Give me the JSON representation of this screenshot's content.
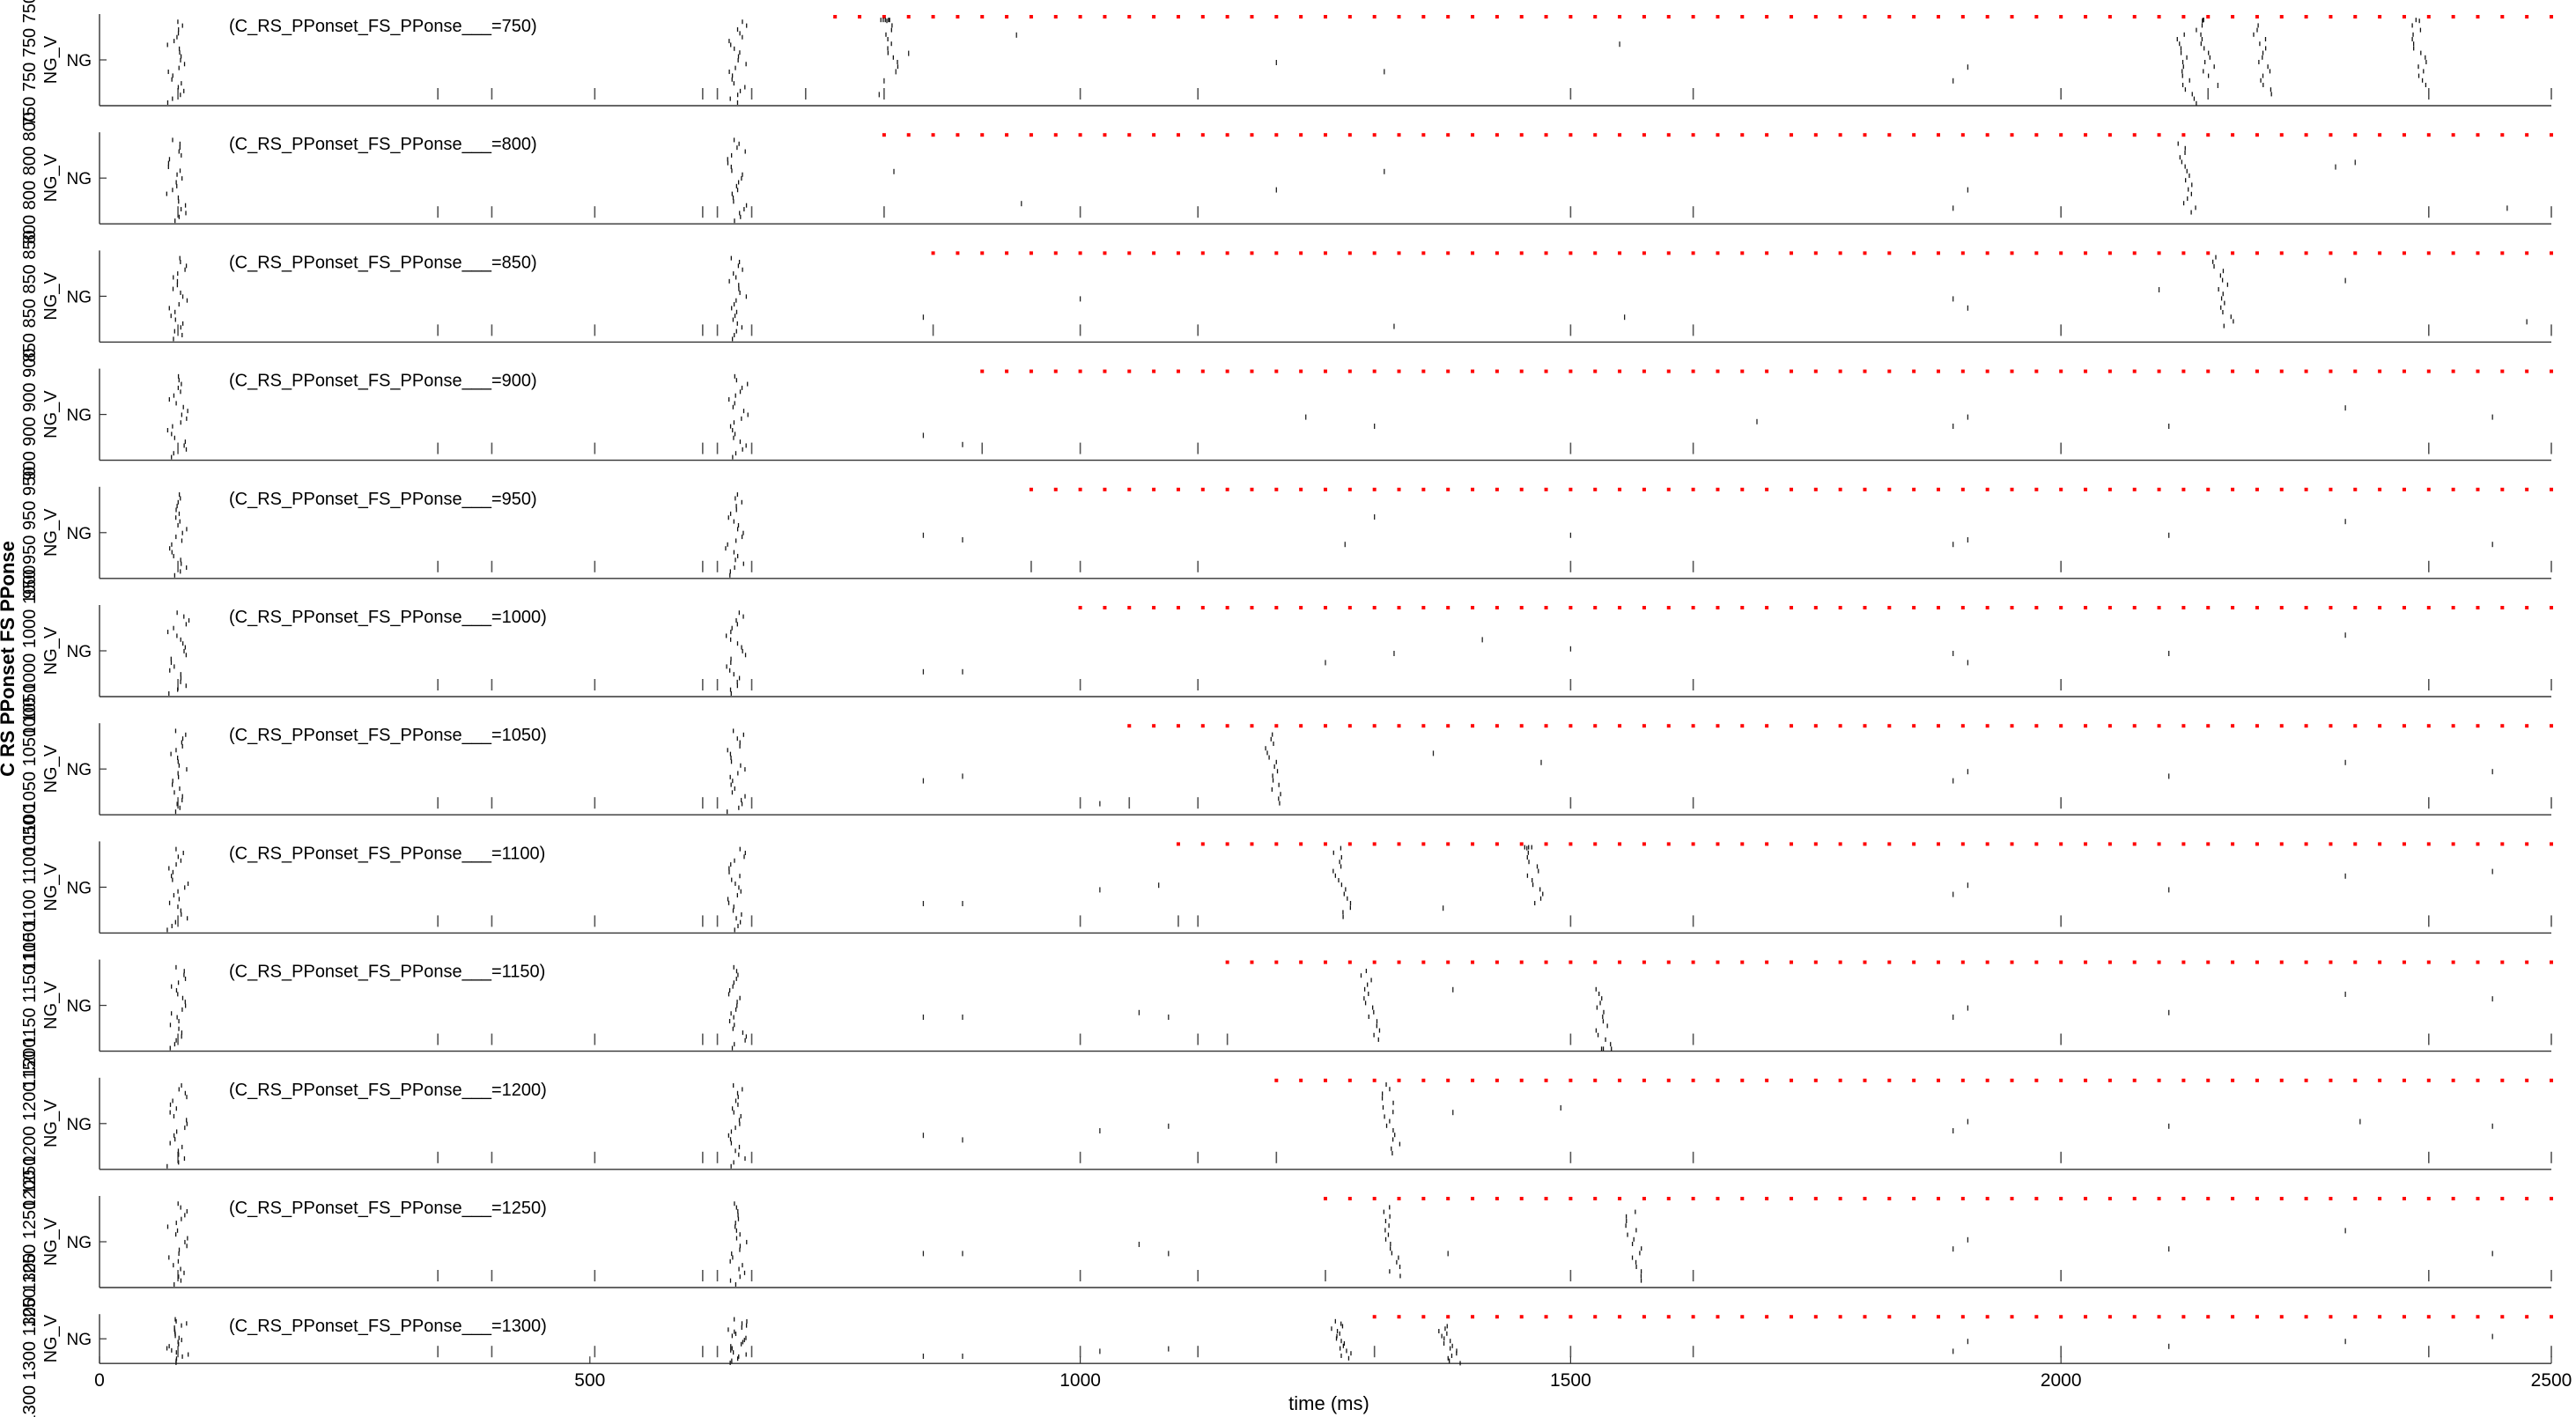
{
  "figure": {
    "side_label": "C RS PPonset FS PPonse",
    "xlabel": "time (ms)"
  },
  "chart_data": {
    "type": "scatter",
    "xlabel": "time (ms)",
    "ylabel": "NG_V",
    "xlim": [
      0,
      2500
    ],
    "xticks": [
      0,
      500,
      1000,
      1500,
      2000,
      2500
    ],
    "x_tick_labels": [
      "0",
      "500",
      "1000",
      "1500",
      "2000",
      "2500"
    ],
    "panel_ylabel": "NG_V",
    "panels": [
      {
        "title": "(C_RS_PPonset_FS_PPonse___=750)",
        "onset": 750,
        "left_strip": "750 750 750 750",
        "vlines": [
          80,
          345,
          400,
          505,
          615,
          630,
          665,
          720,
          800,
          1000,
          1120,
          1500,
          1625,
          2000,
          2150,
          2375,
          2500
        ],
        "extra_spikes": [
          [
            795,
            0.85
          ],
          [
            800,
            0.7
          ],
          [
            812,
            0.6
          ],
          [
            825,
            0.4
          ],
          [
            935,
            0.2
          ],
          [
            1200,
            0.5
          ],
          [
            1310,
            0.6
          ],
          [
            1550,
            0.3
          ],
          [
            1890,
            0.7
          ],
          [
            1905,
            0.55
          ],
          [
            2160,
            0.75
          ]
        ],
        "bursts": [
          [
            800,
            0.2
          ],
          [
            2120,
            0.6
          ],
          [
            2140,
            0.3
          ],
          [
            2200,
            0.5
          ],
          [
            2360,
            0.4
          ]
        ]
      },
      {
        "title": "(C_RS_PPonset_FS_PPonse___=800)",
        "onset": 800,
        "left_strip": "800 800 800 800",
        "vlines": [
          80,
          345,
          400,
          505,
          615,
          630,
          665,
          800,
          1000,
          1120,
          1500,
          1625,
          2000,
          2375,
          2500
        ],
        "extra_spikes": [
          [
            810,
            0.4
          ],
          [
            940,
            0.75
          ],
          [
            1200,
            0.6
          ],
          [
            1310,
            0.4
          ],
          [
            1890,
            0.8
          ],
          [
            1905,
            0.6
          ],
          [
            2280,
            0.35
          ],
          [
            2300,
            0.3
          ],
          [
            2455,
            0.8
          ]
        ],
        "bursts": [
          [
            2120,
            0.5
          ]
        ]
      },
      {
        "title": "(C_RS_PPonset_FS_PPonse___=850)",
        "onset": 850,
        "left_strip": "850 850 850 850",
        "vlines": [
          80,
          345,
          400,
          505,
          615,
          630,
          665,
          850,
          1000,
          1120,
          1500,
          1625,
          2000,
          2375,
          2500
        ],
        "extra_spikes": [
          [
            840,
            0.7
          ],
          [
            1000,
            0.5
          ],
          [
            1320,
            0.8
          ],
          [
            1555,
            0.7
          ],
          [
            1890,
            0.5
          ],
          [
            1905,
            0.6
          ],
          [
            2100,
            0.4
          ],
          [
            2290,
            0.3
          ],
          [
            2475,
            0.75
          ]
        ],
        "bursts": [
          [
            2160,
            0.45
          ]
        ]
      },
      {
        "title": "(C_RS_PPonset_FS_PPonse___=900)",
        "onset": 900,
        "left_strip": "900 900 900 900",
        "vlines": [
          80,
          345,
          400,
          505,
          615,
          630,
          665,
          900,
          1000,
          1120,
          1500,
          1625,
          2000,
          2375,
          2500
        ],
        "extra_spikes": [
          [
            840,
            0.7
          ],
          [
            880,
            0.8
          ],
          [
            1230,
            0.5
          ],
          [
            1300,
            0.6
          ],
          [
            1690,
            0.55
          ],
          [
            1890,
            0.6
          ],
          [
            1905,
            0.5
          ],
          [
            2110,
            0.6
          ],
          [
            2290,
            0.4
          ],
          [
            2440,
            0.5
          ]
        ],
        "bursts": []
      },
      {
        "title": "(C_RS_PPonset_FS_PPonse___=950)",
        "onset": 950,
        "left_strip": "950 950 950 950",
        "vlines": [
          80,
          345,
          400,
          505,
          615,
          630,
          665,
          950,
          1000,
          1120,
          1500,
          1625,
          2000,
          2375,
          2500
        ],
        "extra_spikes": [
          [
            840,
            0.5
          ],
          [
            880,
            0.55
          ],
          [
            1270,
            0.6
          ],
          [
            1300,
            0.3
          ],
          [
            1500,
            0.5
          ],
          [
            1890,
            0.6
          ],
          [
            1905,
            0.55
          ],
          [
            2110,
            0.5
          ],
          [
            2290,
            0.35
          ],
          [
            2440,
            0.6
          ]
        ],
        "bursts": []
      },
      {
        "title": "(C_RS_PPonset_FS_PPonse___=1000)",
        "onset": 1000,
        "left_strip": "1000 1000 1000 1000",
        "vlines": [
          80,
          345,
          400,
          505,
          615,
          630,
          665,
          1000,
          1120,
          1500,
          1625,
          2000,
          2375,
          2500
        ],
        "extra_spikes": [
          [
            840,
            0.7
          ],
          [
            880,
            0.7
          ],
          [
            1250,
            0.6
          ],
          [
            1320,
            0.5
          ],
          [
            1410,
            0.35
          ],
          [
            1500,
            0.45
          ],
          [
            1890,
            0.5
          ],
          [
            1905,
            0.6
          ],
          [
            2110,
            0.5
          ],
          [
            2290,
            0.3
          ]
        ],
        "bursts": []
      },
      {
        "title": "(C_RS_PPonset_FS_PPonse___=1050)",
        "onset": 1050,
        "left_strip": "1050 1050 1050 1050",
        "vlines": [
          80,
          345,
          400,
          505,
          615,
          630,
          665,
          1000,
          1050,
          1120,
          1500,
          1625,
          2000,
          2375,
          2500
        ],
        "extra_spikes": [
          [
            840,
            0.6
          ],
          [
            880,
            0.55
          ],
          [
            1020,
            0.85
          ],
          [
            1360,
            0.3
          ],
          [
            1470,
            0.4
          ],
          [
            1890,
            0.6
          ],
          [
            1905,
            0.5
          ],
          [
            2110,
            0.55
          ],
          [
            2290,
            0.4
          ],
          [
            2440,
            0.5
          ]
        ],
        "bursts": [
          [
            1190,
            0.5
          ]
        ]
      },
      {
        "title": "(C_RS_PPonset_FS_PPonse___=1100)",
        "onset": 1100,
        "left_strip": "1100 1100 1100 1100",
        "vlines": [
          80,
          345,
          400,
          505,
          615,
          630,
          665,
          1000,
          1100,
          1120,
          1500,
          1625,
          2000,
          2375,
          2500
        ],
        "extra_spikes": [
          [
            840,
            0.65
          ],
          [
            880,
            0.65
          ],
          [
            1020,
            0.5
          ],
          [
            1080,
            0.45
          ],
          [
            1370,
            0.7
          ],
          [
            1890,
            0.55
          ],
          [
            1905,
            0.45
          ],
          [
            2110,
            0.5
          ],
          [
            2290,
            0.35
          ],
          [
            2440,
            0.3
          ]
        ],
        "bursts": [
          [
            1260,
            0.45
          ],
          [
            1455,
            0.3
          ]
        ]
      },
      {
        "title": "(C_RS_PPonset_FS_PPonse___=1150)",
        "onset": 1150,
        "left_strip": "1150 1150 1150 1150",
        "vlines": [
          80,
          345,
          400,
          505,
          615,
          630,
          665,
          1000,
          1120,
          1150,
          1500,
          1625,
          2000,
          2375,
          2500
        ],
        "extra_spikes": [
          [
            840,
            0.6
          ],
          [
            880,
            0.6
          ],
          [
            1060,
            0.55
          ],
          [
            1090,
            0.6
          ],
          [
            1380,
            0.3
          ],
          [
            1890,
            0.6
          ],
          [
            1905,
            0.5
          ],
          [
            2110,
            0.55
          ],
          [
            2290,
            0.35
          ],
          [
            2440,
            0.4
          ]
        ],
        "bursts": [
          [
            1290,
            0.5
          ],
          [
            1525,
            0.7
          ]
        ]
      },
      {
        "title": "(C_RS_PPonset_FS_PPonse___=1200)",
        "onset": 1200,
        "left_strip": "1200 1200 1200 1200",
        "vlines": [
          80,
          345,
          400,
          505,
          615,
          630,
          665,
          1000,
          1120,
          1200,
          1500,
          1625,
          2000,
          2375,
          2500
        ],
        "extra_spikes": [
          [
            840,
            0.6
          ],
          [
            880,
            0.65
          ],
          [
            1020,
            0.55
          ],
          [
            1090,
            0.5
          ],
          [
            1380,
            0.35
          ],
          [
            1490,
            0.3
          ],
          [
            1890,
            0.55
          ],
          [
            1905,
            0.45
          ],
          [
            2110,
            0.5
          ],
          [
            2305,
            0.45
          ],
          [
            2440,
            0.5
          ]
        ],
        "bursts": [
          [
            1310,
            0.45
          ]
        ]
      },
      {
        "title": "(C_RS_PPonset_FS_PPonse___=1250)",
        "onset": 1250,
        "left_strip": "1250 1250 1250 1250",
        "vlines": [
          80,
          345,
          400,
          505,
          615,
          630,
          665,
          1000,
          1120,
          1250,
          1500,
          1625,
          2000,
          2375,
          2500
        ],
        "extra_spikes": [
          [
            840,
            0.6
          ],
          [
            880,
            0.6
          ],
          [
            1060,
            0.5
          ],
          [
            1090,
            0.6
          ],
          [
            1375,
            0.6
          ],
          [
            1890,
            0.55
          ],
          [
            1905,
            0.45
          ],
          [
            2110,
            0.55
          ],
          [
            2290,
            0.35
          ],
          [
            2440,
            0.6
          ]
        ],
        "bursts": [
          [
            1310,
            0.5
          ],
          [
            1560,
            0.55
          ]
        ]
      },
      {
        "title": "(C_RS_PPonset_FS_PPonse___=1300)",
        "onset": 1300,
        "left_strip": "1300 1300 1300 1300",
        "vlines": [
          80,
          345,
          400,
          505,
          615,
          630,
          665,
          1000,
          1120,
          1300,
          1500,
          1625,
          2000,
          2375,
          2500
        ],
        "extra_spikes": [
          [
            840,
            0.8
          ],
          [
            880,
            0.8
          ],
          [
            1020,
            0.7
          ],
          [
            1090,
            0.65
          ],
          [
            1890,
            0.7
          ],
          [
            1905,
            0.5
          ],
          [
            2110,
            0.6
          ],
          [
            2290,
            0.5
          ],
          [
            2440,
            0.4
          ]
        ],
        "bursts": [
          [
            1260,
            0.5
          ],
          [
            1370,
            0.6
          ]
        ]
      }
    ],
    "fixed_bursts_ms": [
      80,
      650
    ],
    "stimulus_marker_color": "#ff0000",
    "stimulus_interval_ms": 25,
    "grid": false
  }
}
